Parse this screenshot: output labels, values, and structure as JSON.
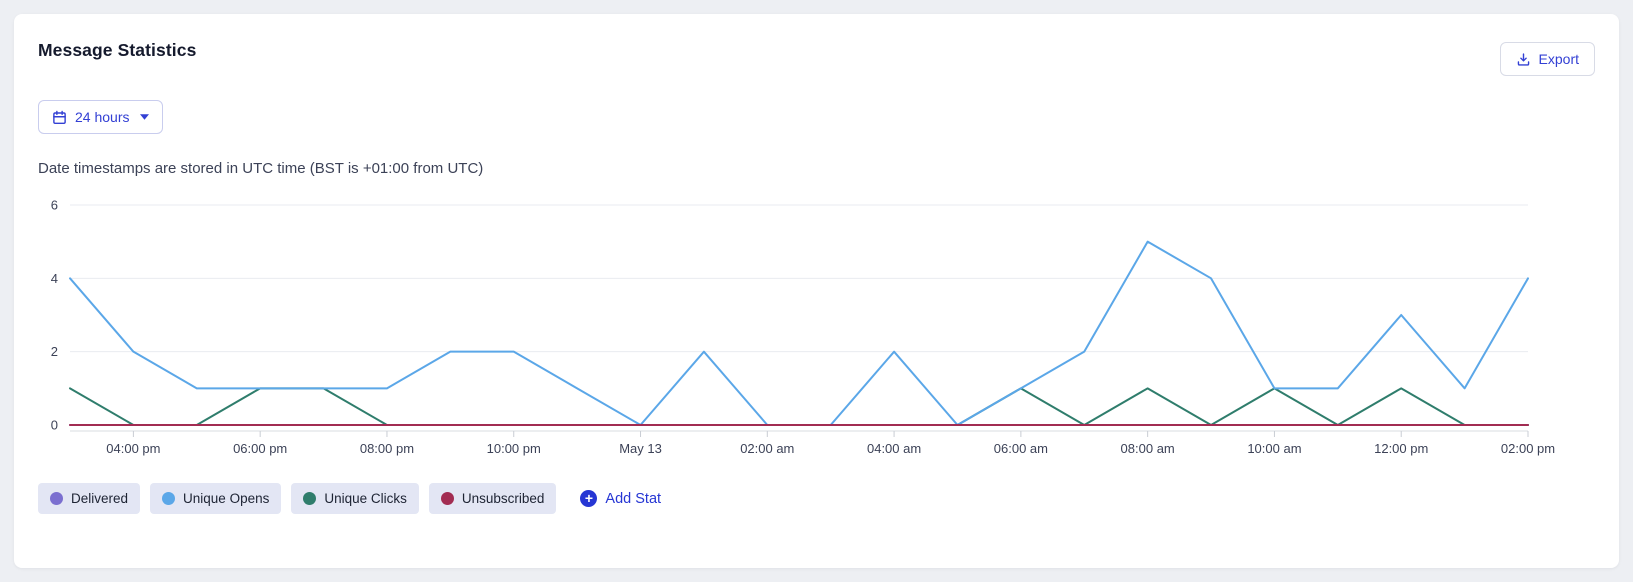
{
  "accent_color": "#3340d4",
  "card": {
    "title": "Message Statistics",
    "export_label": "Export",
    "range_label": "24 hours",
    "subtitle": "Date timestamps are stored in UTC time (BST is +01:00 from UTC)"
  },
  "legend": {
    "add_label": "Add Stat",
    "items": [
      {
        "label": "Delivered",
        "color": "#7b6fd0"
      },
      {
        "label": "Unique Opens",
        "color": "#5ba7e8"
      },
      {
        "label": "Unique Clicks",
        "color": "#2f7d6c"
      },
      {
        "label": "Unsubscribed",
        "color": "#a22c52"
      }
    ]
  },
  "chart_data": {
    "type": "line",
    "title": "",
    "xlabel": "",
    "ylabel": "",
    "x_note": "24 hourly points from 03:00 pm to 02:00 pm next day; ticks labeled every 2 hours",
    "x_tick_labels": [
      "04:00 pm",
      "06:00 pm",
      "08:00 pm",
      "10:00 pm",
      "May 13",
      "02:00 am",
      "04:00 am",
      "06:00 am",
      "08:00 am",
      "10:00 am",
      "12:00 pm",
      "02:00 pm"
    ],
    "y_ticks": [
      0,
      2,
      4,
      6
    ],
    "ylim": [
      0,
      6.5
    ],
    "grid": true,
    "legend_position": "bottom",
    "series": [
      {
        "name": "Delivered",
        "color": "#7b6fd0",
        "values": [
          0,
          0,
          0,
          0,
          0,
          0,
          0,
          0,
          0,
          0,
          0,
          0,
          0,
          0,
          0,
          0,
          0,
          0,
          0,
          0,
          0,
          0,
          0,
          0
        ]
      },
      {
        "name": "Unique Opens",
        "color": "#5ba7e8",
        "values": [
          4,
          2,
          1,
          1,
          1,
          1,
          2,
          2,
          1,
          0,
          2,
          0,
          0,
          2,
          0,
          1,
          2,
          5,
          4,
          1,
          1,
          3,
          1,
          4
        ]
      },
      {
        "name": "Unique Clicks",
        "color": "#2f7d6c",
        "values": [
          1,
          0,
          0,
          1,
          1,
          0,
          0,
          0,
          0,
          0,
          0,
          0,
          0,
          0,
          0,
          1,
          0,
          1,
          0,
          1,
          0,
          1,
          0,
          0
        ]
      },
      {
        "name": "Unsubscribed",
        "color": "#a22c52",
        "values": [
          0,
          0,
          0,
          0,
          0,
          0,
          0,
          0,
          0,
          0,
          0,
          0,
          0,
          0,
          0,
          0,
          0,
          0,
          0,
          0,
          0,
          0,
          0,
          0
        ]
      }
    ]
  }
}
